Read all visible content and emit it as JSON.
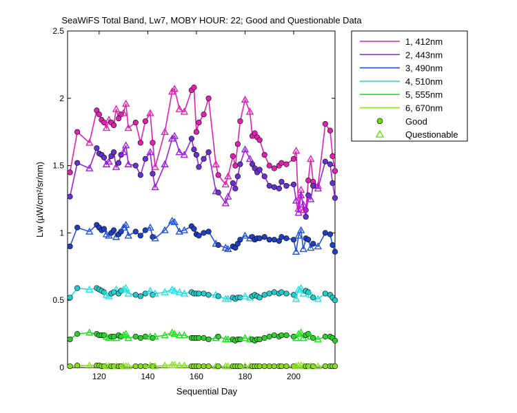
{
  "chart_data": {
    "type": "line",
    "title": "SeaWiFS Total Band,  Lw7, MOBY HOUR: 22;  Good and Questionable Data",
    "xlabel": "Sequential Day",
    "ylabel": "Lw (µW/cm²/sr/nm)",
    "xlim": [
      107,
      217
    ],
    "ylim": [
      0,
      2.5
    ],
    "x_ticks": [
      120,
      140,
      160,
      180,
      200
    ],
    "y_ticks": [
      0,
      0.5,
      1,
      1.5,
      2,
      2.5
    ],
    "y_tick_labels": [
      "0",
      "0.5",
      "1",
      "1.5",
      "2",
      "2.5"
    ],
    "grid": false,
    "legend_position": "outside-top-right",
    "markers": {
      "good": {
        "label": "Good",
        "shape": "circle",
        "legend_color": "#66dd00"
      },
      "questionable": {
        "label": "Questionable",
        "shape": "triangle",
        "legend_color": "#66dd00"
      }
    },
    "x": [
      108,
      111,
      116,
      119,
      120,
      121,
      122,
      123,
      124,
      125,
      126,
      127,
      128,
      129,
      130,
      131,
      132,
      135,
      137,
      139,
      141,
      142,
      143,
      147,
      150,
      151,
      153,
      155,
      158,
      159,
      160,
      161,
      163,
      165,
      168,
      169,
      172,
      173,
      175,
      176,
      177,
      178,
      180,
      182,
      183,
      184,
      185,
      186,
      188,
      190,
      192,
      194,
      195,
      197,
      200,
      201,
      202,
      203,
      204,
      205,
      206,
      207,
      208,
      210,
      213,
      215,
      216,
      217
    ],
    "quality": [
      "g",
      "g",
      "q",
      "g",
      "g",
      "g",
      "g",
      "q",
      "q",
      "g",
      "g",
      "q",
      "g",
      "g",
      "q",
      "q",
      "q",
      "g",
      "g",
      "g",
      "q",
      "g",
      "q",
      "q",
      "q",
      "q",
      "q",
      "q",
      "g",
      "g",
      "g",
      "g",
      "g",
      "g",
      "q",
      "g",
      "q",
      "q",
      "g",
      "g",
      "g",
      "g",
      "q",
      "q",
      "g",
      "g",
      "g",
      "g",
      "g",
      "g",
      "g",
      "g",
      "g",
      "g",
      "g",
      "q",
      "q",
      "q",
      "q",
      "g",
      "g",
      "q",
      "g",
      "q",
      "g",
      "g",
      "g",
      "g"
    ],
    "series": [
      {
        "name": "1, 412nm",
        "color": "#e020b0",
        "marker_fill": "#e020b0",
        "values": [
          1.45,
          1.75,
          1.67,
          1.91,
          1.88,
          1.84,
          1.82,
          1.78,
          1.84,
          1.82,
          1.8,
          1.92,
          1.85,
          1.88,
          1.89,
          1.96,
          1.78,
          1.82,
          1.67,
          1.83,
          1.89,
          1.67,
          1.49,
          1.75,
          2.05,
          2.07,
          1.92,
          1.9,
          2.06,
          2.08,
          1.75,
          1.82,
          1.88,
          2.0,
          1.51,
          1.43,
          1.36,
          1.42,
          1.57,
          1.5,
          1.66,
          1.83,
          1.99,
          1.9,
          1.72,
          1.74,
          1.71,
          1.69,
          1.58,
          1.5,
          1.48,
          1.5,
          1.52,
          1.51,
          1.55,
          1.61,
          1.18,
          1.32,
          1.17,
          1.17,
          1.39,
          1.55,
          1.38,
          1.35,
          1.81,
          1.76,
          1.57,
          1.46
        ]
      },
      {
        "name": "2, 443nm",
        "color": "#9a20e0",
        "marker_fill": "#6633cc",
        "values": [
          1.27,
          1.52,
          1.48,
          1.63,
          1.59,
          1.58,
          1.56,
          1.51,
          1.53,
          1.57,
          1.6,
          1.49,
          1.52,
          1.58,
          1.6,
          1.65,
          1.51,
          1.5,
          1.43,
          1.55,
          1.6,
          1.44,
          1.34,
          1.51,
          1.7,
          1.72,
          1.6,
          1.58,
          1.7,
          1.62,
          1.58,
          1.49,
          1.55,
          1.6,
          1.31,
          1.3,
          1.22,
          1.27,
          1.37,
          1.33,
          1.42,
          1.51,
          1.62,
          1.55,
          1.51,
          1.48,
          1.45,
          1.47,
          1.42,
          1.35,
          1.34,
          1.33,
          1.38,
          1.35,
          1.36,
          1.24,
          1.15,
          1.28,
          1.21,
          1.12,
          1.28,
          1.25,
          1.35,
          1.33,
          1.53,
          1.51,
          1.37,
          1.26
        ]
      },
      {
        "name": "3, 490nm",
        "color": "#2050e0",
        "marker_fill": "#2040c0",
        "values": [
          0.9,
          1.04,
          1.01,
          1.06,
          1.04,
          1.02,
          1.03,
          0.99,
          0.98,
          1.0,
          1.02,
          0.97,
          0.99,
          1.01,
          1.04,
          1.06,
          0.98,
          1.01,
          0.98,
          1.02,
          1.04,
          0.97,
          0.96,
          1.02,
          1.09,
          1.08,
          1.01,
          1.02,
          1.05,
          1.03,
          0.99,
          0.98,
          1.0,
          1.01,
          0.92,
          0.91,
          0.89,
          0.88,
          0.9,
          0.89,
          0.92,
          0.95,
          0.98,
          0.96,
          0.97,
          0.95,
          0.96,
          0.96,
          0.97,
          0.95,
          0.95,
          0.94,
          0.97,
          0.96,
          0.95,
          0.86,
          0.98,
          1.02,
          0.88,
          0.96,
          0.95,
          0.89,
          0.92,
          0.9,
          1.0,
          0.99,
          0.91,
          0.86
        ]
      },
      {
        "name": "4, 510nm",
        "color": "#20e0e0",
        "marker_fill": "#20cccc",
        "values": [
          0.52,
          0.59,
          0.58,
          0.59,
          0.58,
          0.57,
          0.56,
          0.54,
          0.53,
          0.55,
          0.56,
          0.58,
          0.55,
          0.57,
          0.58,
          0.59,
          0.55,
          0.54,
          0.53,
          0.55,
          0.57,
          0.54,
          0.55,
          0.56,
          0.58,
          0.57,
          0.56,
          0.55,
          0.56,
          0.55,
          0.55,
          0.55,
          0.55,
          0.54,
          0.54,
          0.53,
          0.51,
          0.51,
          0.52,
          0.51,
          0.52,
          0.52,
          0.53,
          0.52,
          0.53,
          0.54,
          0.53,
          0.52,
          0.54,
          0.55,
          0.56,
          0.55,
          0.56,
          0.55,
          0.54,
          0.51,
          0.58,
          0.59,
          0.55,
          0.57,
          0.56,
          0.54,
          0.52,
          0.51,
          0.55,
          0.54,
          0.52,
          0.5
        ]
      },
      {
        "name": "5, 555nm",
        "color": "#20e020",
        "marker_fill": "#30cc30",
        "values": [
          0.21,
          0.25,
          0.26,
          0.25,
          0.24,
          0.24,
          0.24,
          0.23,
          0.22,
          0.23,
          0.23,
          0.22,
          0.24,
          0.23,
          0.24,
          0.25,
          0.22,
          0.23,
          0.22,
          0.23,
          0.23,
          0.22,
          0.23,
          0.24,
          0.26,
          0.25,
          0.24,
          0.24,
          0.22,
          0.22,
          0.22,
          0.22,
          0.22,
          0.21,
          0.22,
          0.23,
          0.21,
          0.21,
          0.21,
          0.2,
          0.21,
          0.21,
          0.22,
          0.21,
          0.21,
          0.2,
          0.21,
          0.21,
          0.22,
          0.23,
          0.24,
          0.23,
          0.24,
          0.24,
          0.23,
          0.22,
          0.25,
          0.26,
          0.22,
          0.24,
          0.25,
          0.23,
          0.22,
          0.21,
          0.23,
          0.23,
          0.22,
          0.2
        ]
      },
      {
        "name": "6, 670nm",
        "color": "#88e020",
        "marker_fill": "#88dd20",
        "values": [
          0.01,
          0.015,
          0.015,
          0.015,
          0.015,
          0.01,
          0.01,
          0.01,
          0.01,
          0.01,
          0.01,
          0.01,
          0.01,
          0.01,
          0.01,
          0.01,
          0.01,
          0.01,
          0.01,
          0.01,
          0.015,
          0.01,
          0.01,
          0.015,
          0.02,
          0.02,
          0.015,
          0.015,
          0.01,
          0.01,
          0.01,
          0.01,
          0.01,
          0.01,
          0.01,
          0.01,
          0.01,
          0.01,
          0.01,
          0.01,
          0.01,
          0.01,
          0.01,
          0.01,
          0.01,
          0.01,
          0.01,
          0.01,
          0.01,
          0.01,
          0.01,
          0.01,
          0.01,
          0.01,
          0.01,
          0.01,
          0.015,
          0.015,
          0.01,
          0.01,
          0.01,
          0.01,
          0.01,
          0.01,
          0.01,
          0.01,
          0.01,
          0.01
        ]
      }
    ]
  }
}
